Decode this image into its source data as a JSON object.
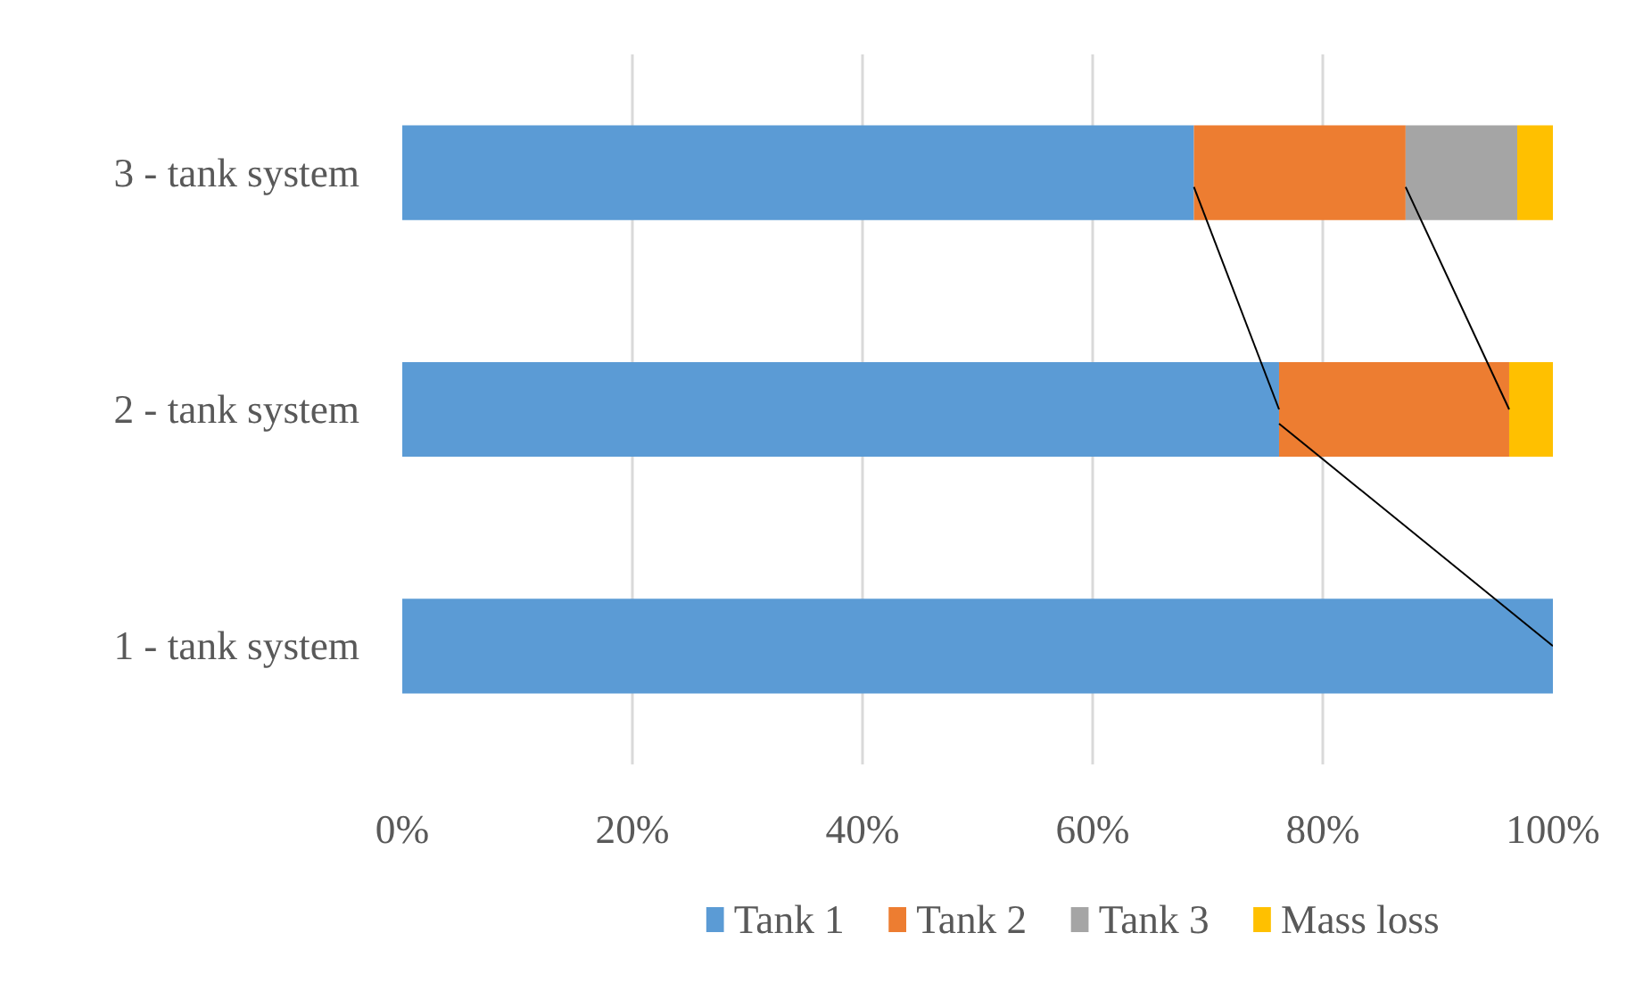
{
  "chart_data": {
    "type": "bar",
    "orientation": "horizontal",
    "stacked": true,
    "categories": [
      "3 - tank system",
      "2 - tank system",
      "1 - tank system"
    ],
    "series": [
      {
        "name": "Tank 1",
        "color": "#5b9bd5",
        "values": [
          68.8,
          76.2,
          100
        ]
      },
      {
        "name": "Tank 2",
        "color": "#ed7d31",
        "values": [
          18.4,
          20.0,
          0
        ]
      },
      {
        "name": "Tank 3",
        "color": "#a5a5a5",
        "values": [
          9.7,
          0,
          0
        ]
      },
      {
        "name": "Mass loss",
        "color": "#ffc000",
        "values": [
          3.1,
          3.8,
          0
        ]
      }
    ],
    "xlim": [
      0,
      100
    ],
    "xticks": [
      {
        "value": 0,
        "label": "0%"
      },
      {
        "value": 20,
        "label": "20%"
      },
      {
        "value": 40,
        "label": "40%"
      },
      {
        "value": 60,
        "label": "60%"
      },
      {
        "value": 80,
        "label": "80%"
      },
      {
        "value": 100,
        "label": "100%"
      }
    ],
    "grid": "x",
    "legend": "bottom"
  }
}
